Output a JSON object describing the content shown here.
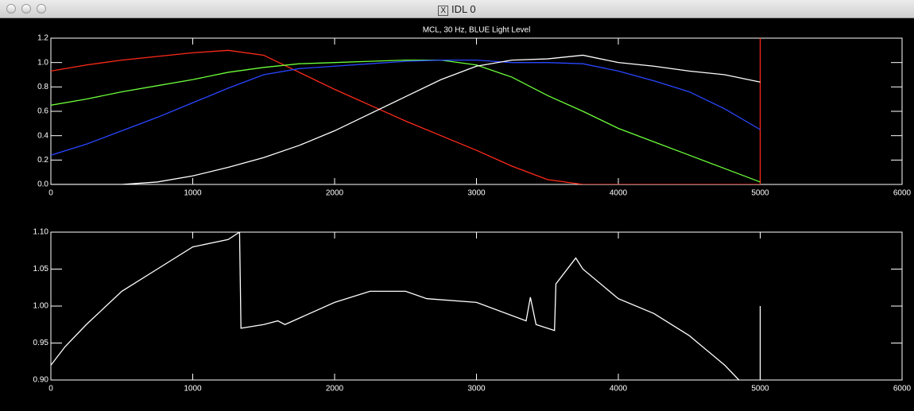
{
  "window": {
    "title": "IDL 0"
  },
  "chart_data": [
    {
      "type": "line",
      "title": "MCL, 30 Hz, BLUE Light Level",
      "x": [
        0,
        250,
        500,
        750,
        1000,
        1250,
        1500,
        1750,
        2000,
        2250,
        2500,
        2750,
        3000,
        3250,
        3500,
        3750,
        4000,
        4250,
        4500,
        4750,
        5000,
        5000
      ],
      "series": [
        {
          "color": "#ff2a1a",
          "values": [
            0.93,
            0.98,
            1.02,
            1.05,
            1.08,
            1.1,
            1.06,
            0.92,
            0.78,
            0.65,
            0.52,
            0.4,
            0.28,
            0.15,
            0.04,
            0,
            0,
            0,
            0,
            0,
            0,
            1.2
          ]
        },
        {
          "color": "#6cff3a",
          "values": [
            0.65,
            0.7,
            0.76,
            0.81,
            0.86,
            0.92,
            0.96,
            0.99,
            1.0,
            1.01,
            1.02,
            1.02,
            0.98,
            0.88,
            0.73,
            0.6,
            0.46,
            0.35,
            0.24,
            0.13,
            0.02,
            null
          ]
        },
        {
          "color": "#2a46ff",
          "values": [
            0.24,
            0.33,
            0.44,
            0.55,
            0.67,
            0.79,
            0.9,
            0.95,
            0.97,
            0.99,
            1.01,
            1.02,
            1.02,
            1.0,
            1.0,
            0.99,
            0.93,
            0.85,
            0.76,
            0.62,
            0.45,
            null
          ]
        },
        {
          "color": "#ffffff",
          "values": [
            0,
            0,
            0,
            0.02,
            0.07,
            0.14,
            0.22,
            0.32,
            0.44,
            0.58,
            0.72,
            0.86,
            0.97,
            1.02,
            1.03,
            1.06,
            1.0,
            0.97,
            0.93,
            0.9,
            0.84,
            null
          ]
        }
      ],
      "xlim": [
        0,
        6000
      ],
      "xticks": [
        0,
        1000,
        2000,
        3000,
        4000,
        5000,
        6000
      ],
      "ylim": [
        0,
        1.2
      ],
      "yticks": [
        {
          "value": 0,
          "label": "0.0"
        },
        0.2,
        0.4,
        0.6,
        0.8,
        {
          "value": 1,
          "label": "1.0"
        },
        1.2
      ]
    },
    {
      "type": "line",
      "x": [
        0,
        100,
        250,
        500,
        750,
        1000,
        1250,
        1330,
        1340,
        1500,
        1600,
        1650,
        2000,
        2250,
        2500,
        2650,
        3000,
        3350,
        3380,
        3420,
        3550,
        3560,
        3700,
        3750,
        4000,
        4250,
        4500,
        4750,
        4850,
        4900,
        5000,
        5000
      ],
      "series": [
        {
          "color": "#ffffff",
          "values": [
            0.92,
            0.945,
            0.975,
            1.02,
            1.05,
            1.08,
            1.09,
            1.1,
            0.97,
            0.975,
            0.98,
            0.975,
            1.005,
            1.02,
            1.02,
            1.01,
            1.005,
            0.98,
            1.012,
            0.975,
            0.967,
            1.03,
            1.065,
            1.05,
            1.01,
            0.99,
            0.96,
            0.92,
            0.9,
            null,
            0.9,
            1.0
          ]
        }
      ],
      "xlim": [
        0,
        6000
      ],
      "xticks": [
        0,
        1000,
        2000,
        3000,
        4000,
        5000,
        6000
      ],
      "ylim": [
        0.9,
        1.1
      ],
      "yticks": [
        {
          "value": 0.9,
          "label": "0.90"
        },
        {
          "value": 0.95,
          "label": "0.95"
        },
        {
          "value": 1,
          "label": "1.00"
        },
        {
          "value": 1.05,
          "label": "1.05"
        },
        {
          "value": 1.1,
          "label": "1.10"
        }
      ]
    }
  ]
}
